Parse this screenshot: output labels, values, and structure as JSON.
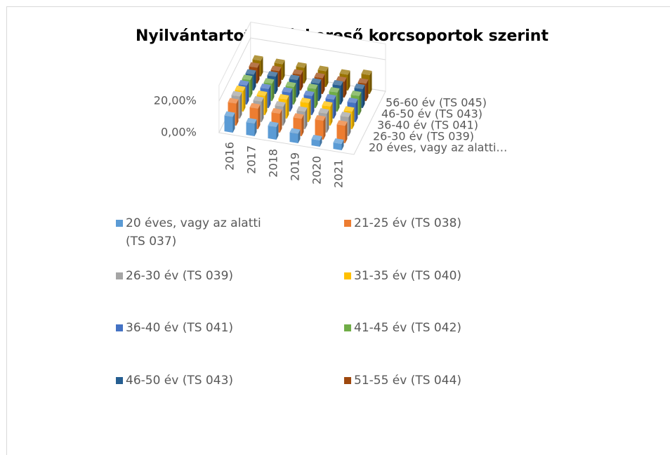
{
  "chart_data": {
    "type": "bar3d",
    "title": "Nyilvántartott álláskereső korcsoportok szerint",
    "categories": [
      "2016",
      "2017",
      "2018",
      "2019",
      "2020",
      "2021"
    ],
    "depth_labels": [
      "20 éves, vagy az alatti…",
      "26-30 év (TS 039)",
      "36-40 év (TS 041)",
      "46-50 év (TS 043)",
      "56-60 év (TS 045)"
    ],
    "series": [
      {
        "name": "20 éves, vagy az alatti (TS 037)",
        "color": "#5b9bd5",
        "values": [
          10,
          8,
          8,
          6,
          4,
          4
        ]
      },
      {
        "name": "21-25 év (TS 038)",
        "color": "#ed7d31",
        "values": [
          14,
          13,
          12,
          11,
          12,
          11
        ]
      },
      {
        "name": "26-30 év (TS 039)",
        "color": "#a5a5a5",
        "values": [
          14,
          13,
          12,
          11,
          12,
          12
        ]
      },
      {
        "name": "31-35 év (TS 040)",
        "color": "#ffc000",
        "values": [
          13,
          12,
          12,
          12,
          12,
          11
        ]
      },
      {
        "name": "36-40 év (TS 041)",
        "color": "#4472c4",
        "values": [
          12,
          12,
          12,
          12,
          12,
          12
        ]
      },
      {
        "name": "41-45 év (TS 042)",
        "color": "#70ad47",
        "values": [
          11,
          11,
          11,
          12,
          12,
          12
        ]
      },
      {
        "name": "46-50 év (TS 043)",
        "color": "#255e91",
        "values": [
          10,
          11,
          11,
          11,
          12,
          12
        ]
      },
      {
        "name": "51-55 év (TS 044)",
        "color": "#9e480e",
        "values": [
          10,
          10,
          10,
          10,
          10,
          11
        ]
      },
      {
        "name": "56-60 év (TS 045)",
        "color": "#997300",
        "values": [
          10,
          10,
          10,
          10,
          10,
          12
        ]
      }
    ],
    "ylim": [
      0,
      30
    ],
    "yticks": [
      {
        "value": 0,
        "label": "0,00%"
      },
      {
        "value": 20,
        "label": "20,00%"
      }
    ],
    "grid": true
  }
}
